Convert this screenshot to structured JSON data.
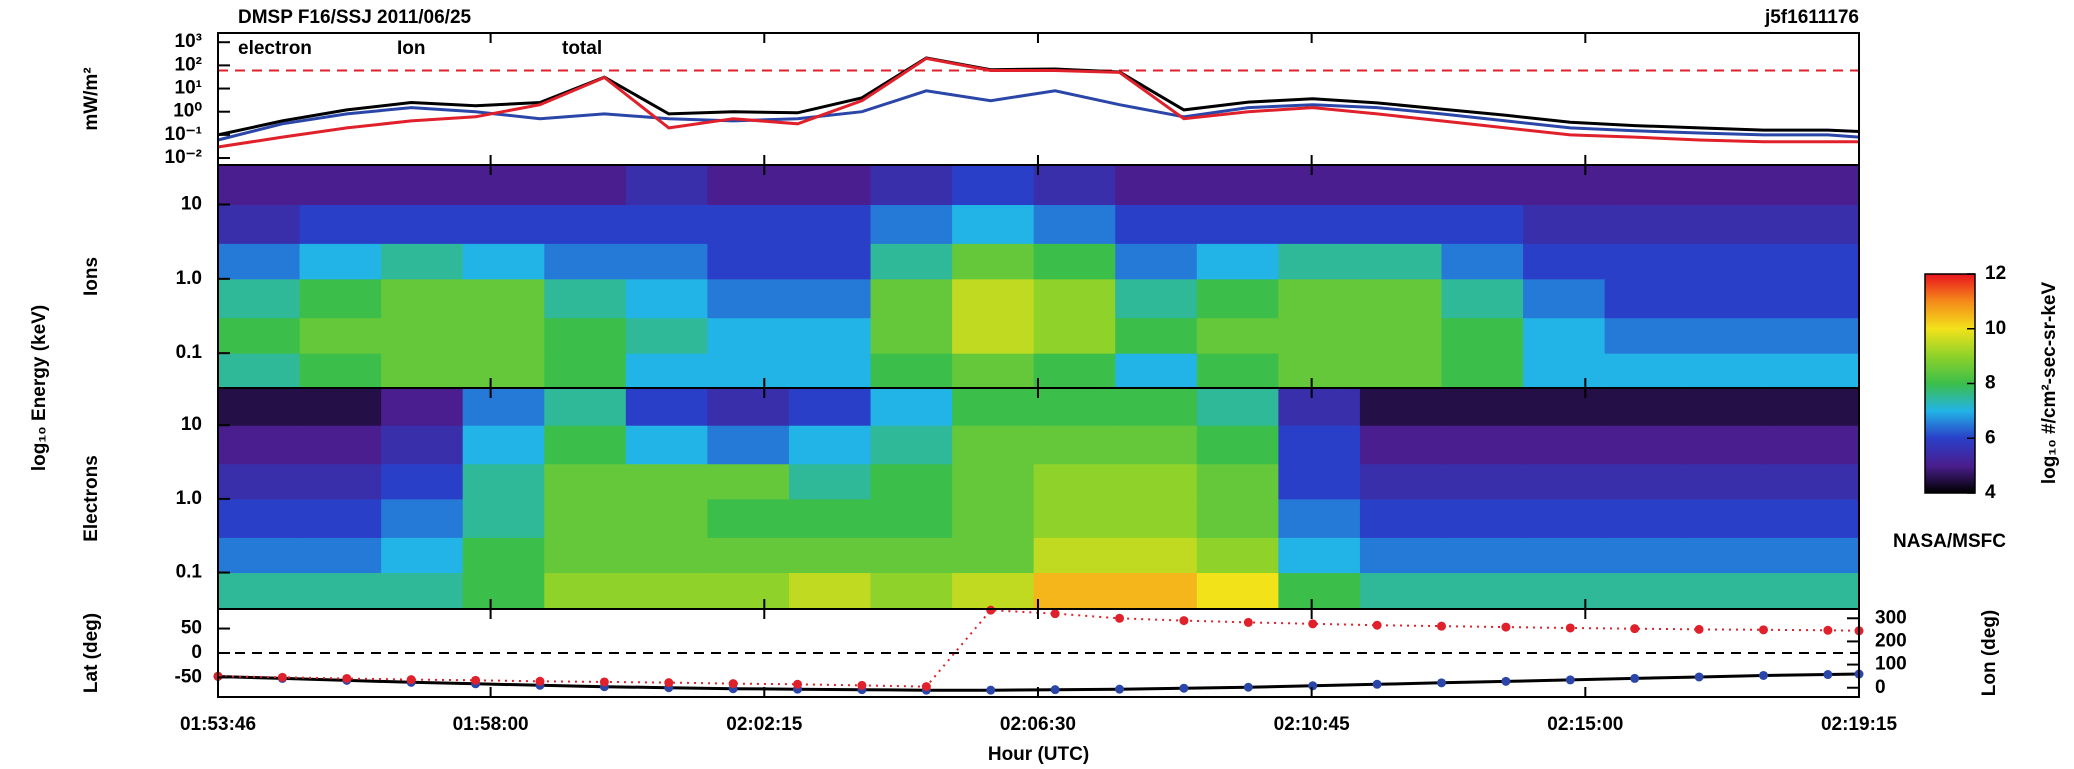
{
  "chart_data": [
    {
      "type": "line",
      "title": "DMSP F16/SSJ 2011/06/25",
      "subtitle": "j5f1611176",
      "ylabel": "mW/m²",
      "log_scale": true,
      "ylim": [
        0.005,
        2500
      ],
      "yticks": [
        {
          "value": 0.01,
          "label": "10⁻²"
        },
        {
          "value": 0.1,
          "label": "10⁻¹"
        },
        {
          "value": 1,
          "label": "10⁰"
        },
        {
          "value": 10,
          "label": "10¹"
        },
        {
          "value": 100,
          "label": "10²"
        },
        {
          "value": 1000,
          "label": "10³"
        }
      ],
      "reference_line": 60,
      "reference_color": "#e0202a",
      "x": [
        "01:53:46",
        "01:54:46",
        "01:55:46",
        "01:56:46",
        "01:57:46",
        "01:58:46",
        "01:59:46",
        "02:00:46",
        "02:01:46",
        "02:02:46",
        "02:03:46",
        "02:04:46",
        "02:05:46",
        "02:06:46",
        "02:07:46",
        "02:08:46",
        "02:09:46",
        "02:10:46",
        "02:11:46",
        "02:12:46",
        "02:13:46",
        "02:14:46",
        "02:15:46",
        "02:16:46",
        "02:17:46",
        "02:18:46",
        "02:19:15"
      ],
      "series": [
        {
          "name": "total",
          "color": "#000000",
          "values": [
            0.1,
            0.4,
            1.2,
            2.5,
            1.8,
            2.5,
            31,
            0.8,
            1,
            0.9,
            4,
            210,
            65,
            70,
            52,
            1.2,
            2.6,
            3.6,
            2.4,
            1.3,
            0.7,
            0.35,
            0.25,
            0.2,
            0.16,
            0.16,
            0.14
          ]
        },
        {
          "name": "Ion",
          "color": "#2a46a8",
          "values": [
            0.06,
            0.3,
            0.8,
            1.5,
            1,
            0.5,
            0.8,
            0.5,
            0.4,
            0.5,
            1,
            8,
            3,
            8,
            2,
            0.6,
            1.5,
            2,
            1.5,
            0.8,
            0.4,
            0.2,
            0.15,
            0.12,
            0.1,
            0.1,
            0.08
          ]
        },
        {
          "name": "electron",
          "color": "#e0202a",
          "values": [
            0.03,
            0.08,
            0.2,
            0.4,
            0.6,
            2,
            30,
            0.2,
            0.5,
            0.3,
            3,
            200,
            60,
            60,
            50,
            0.5,
            1,
            1.5,
            0.8,
            0.4,
            0.2,
            0.1,
            0.08,
            0.06,
            0.05,
            0.05,
            0.05
          ]
        }
      ]
    },
    {
      "type": "heatmap",
      "ylabel": "Ions",
      "shared_ylabel": "log₁₀ Energy (keV)",
      "log_scale": true,
      "ylim": [
        0.034,
        34
      ],
      "yticks": [
        10,
        {
          "value": 1,
          "label": "1.0"
        },
        0.1
      ],
      "x_bins": [
        "01:53:46",
        "01:55:02",
        "01:56:18",
        "01:57:34",
        "01:58:50",
        "02:00:06",
        "02:01:22",
        "02:02:38",
        "02:03:54",
        "02:05:10",
        "02:06:26",
        "02:07:42",
        "02:08:58",
        "02:10:14",
        "02:11:30",
        "02:12:46",
        "02:14:02",
        "02:15:18",
        "02:16:34",
        "02:17:50",
        "02:19:15"
      ],
      "y_bins": [
        0.034,
        0.1,
        0.3,
        1,
        3,
        10,
        34
      ],
      "z": [
        [
          7.5,
          8,
          8.5,
          8.5,
          8,
          7,
          7,
          7,
          8,
          8.5,
          8,
          7,
          8,
          8.5,
          8.5,
          8,
          7,
          7,
          7,
          7
        ],
        [
          8,
          8.5,
          8.5,
          8.5,
          8,
          7.5,
          7,
          7,
          8.5,
          9.5,
          9,
          8,
          8.5,
          8.5,
          8.5,
          8,
          7,
          6.5,
          6.5,
          6.5
        ],
        [
          7.5,
          8,
          8.5,
          8.5,
          7.5,
          7,
          6.5,
          6.5,
          8.5,
          9.5,
          9,
          7.5,
          8,
          8.5,
          8.5,
          7.5,
          6.5,
          6,
          6,
          6
        ],
        [
          6.5,
          7,
          7.5,
          7,
          6.5,
          6.5,
          6,
          6,
          7.5,
          8.5,
          8,
          6.5,
          7,
          7.5,
          7.5,
          6.5,
          6,
          6,
          6,
          6
        ],
        [
          5.5,
          6,
          6,
          6,
          6,
          6,
          6,
          6,
          6.5,
          7,
          6.5,
          6,
          6,
          6,
          6,
          6,
          5.5,
          5.5,
          5.5,
          5.5
        ],
        [
          5,
          5,
          5,
          5,
          5,
          5.5,
          5,
          5,
          5.5,
          6,
          5.5,
          5,
          5,
          5,
          5,
          5,
          5,
          5,
          5,
          5
        ]
      ],
      "colorbar": {
        "label": "log₁₀ #/cm²-sec-sr-keV",
        "clim": [
          4,
          12
        ],
        "ticks": [
          4,
          6,
          8,
          10,
          12
        ]
      }
    },
    {
      "type": "heatmap",
      "ylabel": "Electrons",
      "log_scale": true,
      "ylim": [
        0.032,
        32
      ],
      "yticks": [
        10,
        {
          "value": 1,
          "label": "1.0"
        },
        0.1
      ],
      "x_bins": [
        "01:53:46",
        "01:55:02",
        "01:56:18",
        "01:57:34",
        "01:58:50",
        "02:00:06",
        "02:01:22",
        "02:02:38",
        "02:03:54",
        "02:05:10",
        "02:06:26",
        "02:07:42",
        "02:08:58",
        "02:10:14",
        "02:11:30",
        "02:12:46",
        "02:14:02",
        "02:15:18",
        "02:16:34",
        "02:17:50",
        "02:19:15"
      ],
      "y_bins": [
        0.032,
        0.1,
        0.3,
        1,
        3,
        10,
        32
      ],
      "z": [
        [
          7.5,
          7.5,
          7.5,
          8,
          9,
          9,
          9,
          9.5,
          9,
          9.5,
          10.5,
          10.5,
          10,
          8,
          7.5,
          7.5,
          7.5,
          7.5,
          7.5,
          7.5
        ],
        [
          6.5,
          6.5,
          7,
          8,
          8.5,
          8.5,
          8.5,
          8.5,
          8.5,
          8.5,
          9.5,
          9.5,
          9,
          7,
          6.5,
          6.5,
          6.5,
          6.5,
          6.5,
          6.5
        ],
        [
          6,
          6,
          6.5,
          7.5,
          8.5,
          8.5,
          8,
          8,
          8,
          8.5,
          9,
          9,
          8.5,
          6.5,
          6,
          6,
          6,
          6,
          6,
          6
        ],
        [
          5.5,
          5.5,
          6,
          7.5,
          8.5,
          8.5,
          8.5,
          7.5,
          8,
          8.5,
          9,
          9,
          8.5,
          6,
          5.5,
          5.5,
          5.5,
          5.5,
          5.5,
          5.5
        ],
        [
          5,
          5,
          5.5,
          7,
          8,
          7,
          6.5,
          7,
          7.5,
          8.5,
          8.5,
          8.5,
          8,
          6,
          5,
          5,
          5,
          5,
          5,
          5
        ],
        [
          4.5,
          4.5,
          5,
          6.5,
          7.5,
          6,
          5.5,
          6,
          7,
          8,
          8,
          8,
          7.5,
          5.5,
          4.5,
          4.5,
          4.5,
          4.5,
          4.5,
          4.5
        ]
      ],
      "credit": "NASA/MSFC"
    },
    {
      "type": "line",
      "ylabel": "Lat (deg)",
      "y2label": "Lon (deg)",
      "y2color": "#e0202a",
      "xlabel": "Hour (UTC)",
      "xlim": [
        "01:53:46",
        "02:19:15"
      ],
      "xticks": [
        "01:53:46",
        "01:58:00",
        "02:02:15",
        "02:06:30",
        "02:10:45",
        "02:15:00",
        "02:19:15"
      ],
      "ylim": [
        -90,
        90
      ],
      "yticks": [
        -50,
        0,
        50
      ],
      "y2lim": [
        -40,
        340
      ],
      "y2ticks": [
        0,
        100,
        200,
        300
      ],
      "reference_line": 0,
      "reference_color": "#000000",
      "x": [
        "01:53:46",
        "01:54:46",
        "01:55:46",
        "01:56:46",
        "01:57:46",
        "01:58:46",
        "01:59:46",
        "02:00:46",
        "02:01:46",
        "02:02:46",
        "02:03:46",
        "02:04:46",
        "02:05:46",
        "02:06:46",
        "02:07:46",
        "02:08:46",
        "02:09:46",
        "02:10:46",
        "02:11:46",
        "02:12:46",
        "02:13:46",
        "02:14:46",
        "02:15:46",
        "02:16:46",
        "02:17:46",
        "02:18:46",
        "02:19:15"
      ],
      "series": [
        {
          "color": "#000000",
          "marker_color": "#2a46a8",
          "values": [
            -48,
            -52,
            -56,
            -60,
            -63,
            -66,
            -69,
            -71,
            -73,
            -74,
            -75,
            -76,
            -76,
            -75,
            -74,
            -72,
            -70,
            -67,
            -64,
            -61,
            -58,
            -55,
            -52,
            -49,
            -46,
            -44,
            -43
          ]
        },
        {
          "color": "#e0202a",
          "marker_color": "#e0202a",
          "axis": "y2",
          "line_style": "dotted",
          "values": [
            50,
            45,
            40,
            35,
            32,
            28,
            25,
            22,
            18,
            15,
            10,
            5,
            335,
            320,
            300,
            290,
            282,
            276,
            270,
            266,
            262,
            258,
            255,
            252,
            250,
            248,
            246
          ]
        }
      ]
    }
  ]
}
